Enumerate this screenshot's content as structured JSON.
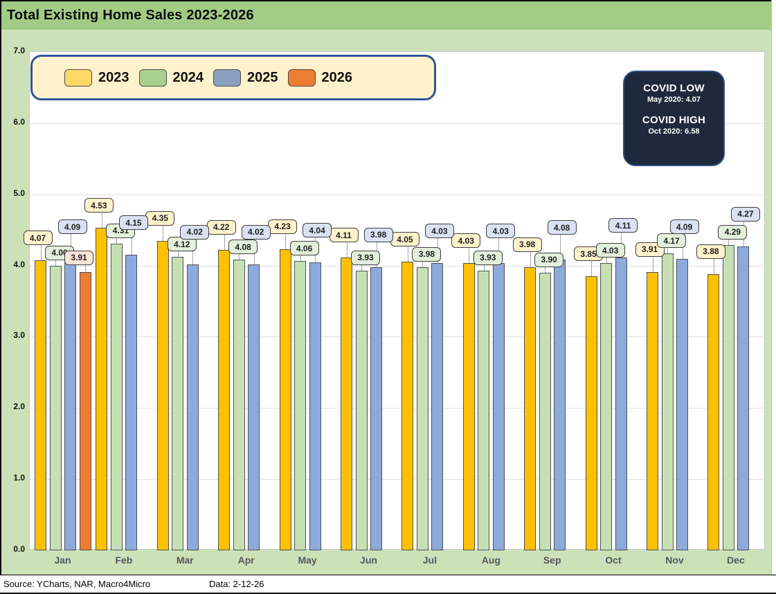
{
  "title": "Total Existing Home Sales 2023-2026",
  "legend": {
    "items": [
      {
        "label": "2023",
        "swatch_color": "#FFD966"
      },
      {
        "label": "2024",
        "swatch_color": "#A9D08E"
      },
      {
        "label": "2025",
        "swatch_color": "#8B9FC0"
      },
      {
        "label": "2026",
        "swatch_color": "#ED7D31"
      }
    ]
  },
  "covid_box": {
    "low_title": "COVID LOW",
    "low_detail": "May  2020: 4.07",
    "high_title": "COVID HIGH",
    "high_detail": "Oct 2020: 6.58"
  },
  "footer": {
    "source": "Source: YCharts, NAR, Macro4Micro",
    "data_date": "Data: 2-12-26"
  },
  "colors": {
    "header_green": "#A2CC85",
    "body_green": "#CBE2B9",
    "covid_box_bg": "#1E2A3C",
    "covid_box_border": "#2F4F86",
    "legend_bg": "#FFF2CC",
    "legend_border": "#2F5496"
  },
  "chart_data": {
    "type": "bar",
    "title": "Total Existing Home Sales 2023-2026",
    "categories": [
      "Jan",
      "Feb",
      "Mar",
      "Apr",
      "May",
      "Jun",
      "Jul",
      "Aug",
      "Sep",
      "Oct",
      "Nov",
      "Dec"
    ],
    "series": [
      {
        "name": "2023",
        "color": "#FFC000",
        "label_bg": "#FFF2CC",
        "values": [
          4.07,
          4.53,
          4.35,
          4.22,
          4.23,
          4.11,
          4.05,
          4.03,
          3.98,
          3.85,
          3.91,
          3.88
        ]
      },
      {
        "name": "2024",
        "color": "#C6E0B4",
        "label_bg": "#E2EFDA",
        "values": [
          4.0,
          4.31,
          4.12,
          4.08,
          4.06,
          3.93,
          3.98,
          3.93,
          3.9,
          4.03,
          4.17,
          4.29
        ]
      },
      {
        "name": "2025",
        "color": "#8EAADB",
        "label_bg": "#D9E1F2",
        "values": [
          4.09,
          4.15,
          4.02,
          4.02,
          4.04,
          3.98,
          4.03,
          4.03,
          4.08,
          4.11,
          4.09,
          4.27
        ]
      },
      {
        "name": "2026",
        "color": "#ED7D31",
        "label_bg": "#FBE5D6",
        "values": [
          3.91,
          null,
          null,
          null,
          null,
          null,
          null,
          null,
          null,
          null,
          null,
          null
        ]
      }
    ],
    "ylim": [
      0,
      7
    ],
    "yticks": [
      0,
      1,
      2,
      3,
      4,
      5,
      6,
      7
    ],
    "grid": true,
    "legend_position": "top-left",
    "value_labels": true
  }
}
